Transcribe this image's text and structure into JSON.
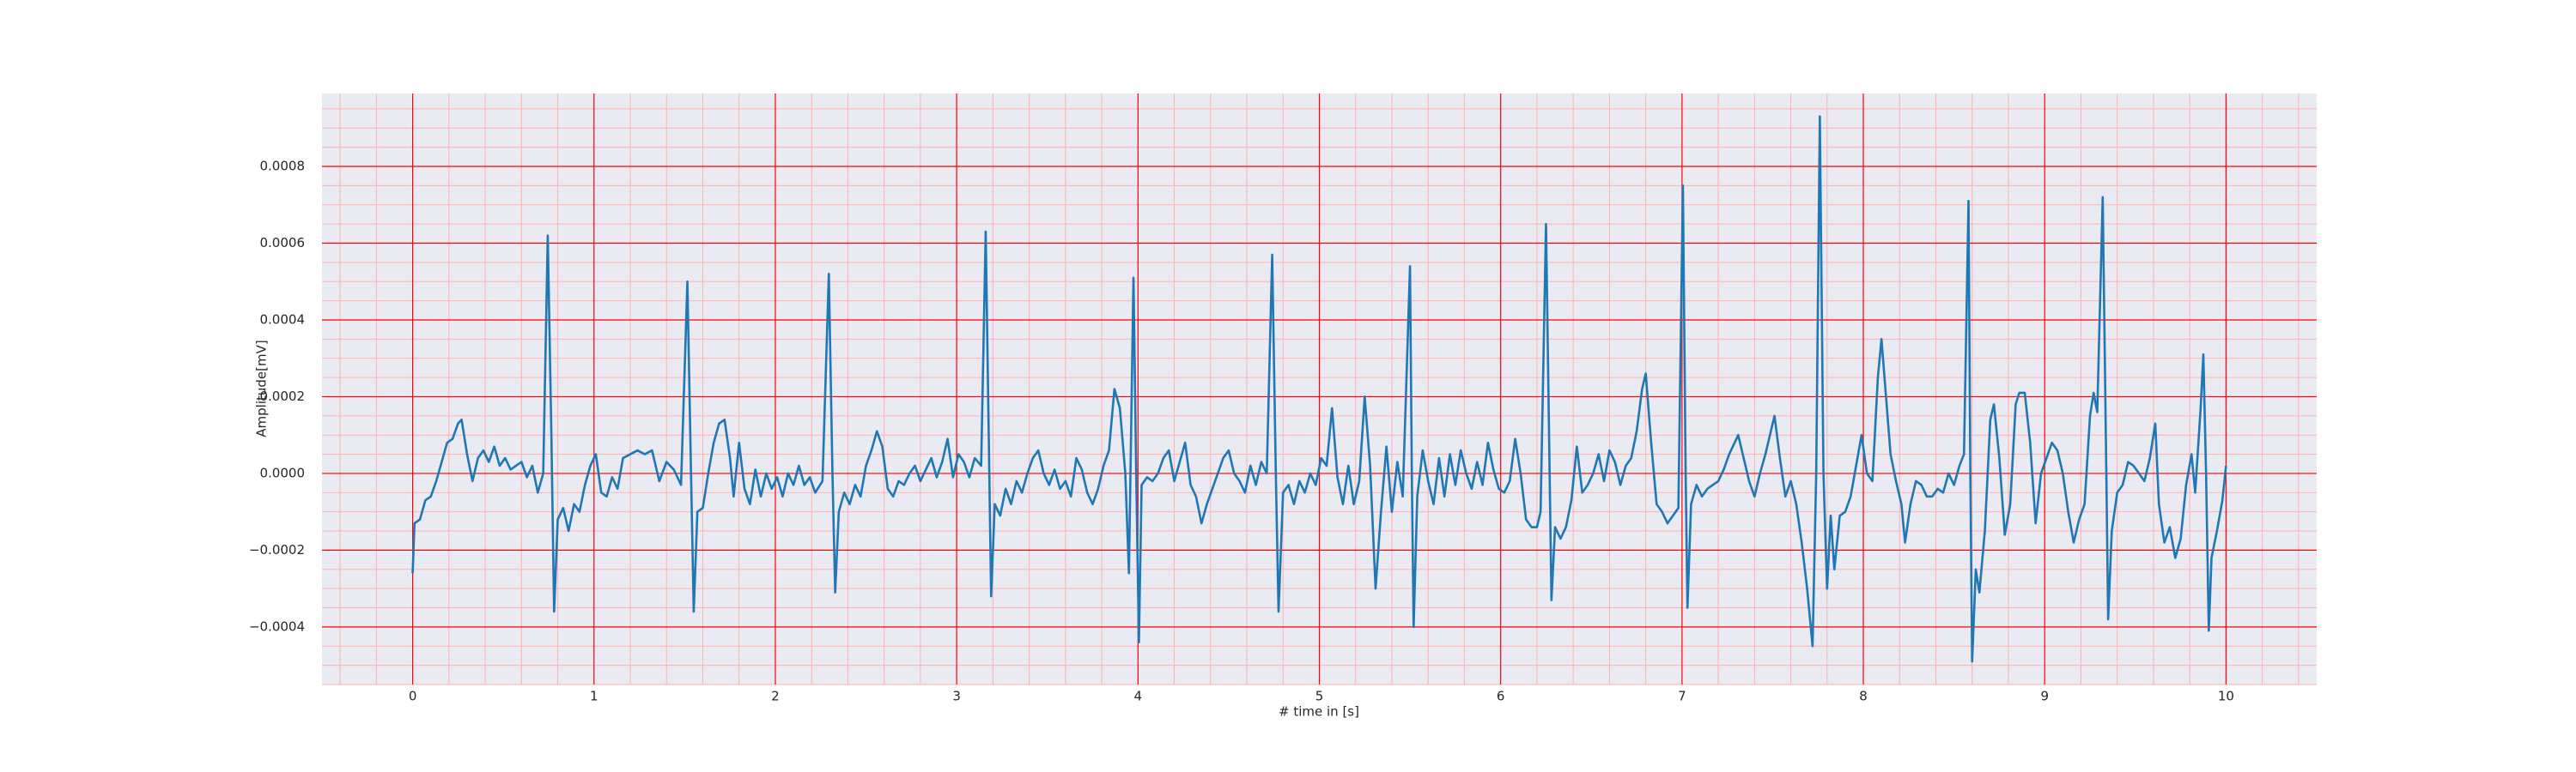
{
  "chart_data": {
    "type": "line",
    "xlabel": "# time in [s]",
    "ylabel": "Amplitude[mV]",
    "xlim": [
      -0.5,
      10.5
    ],
    "ylim": [
      -0.00055,
      0.00099
    ],
    "xticks": [
      0,
      1,
      2,
      3,
      4,
      5,
      6,
      7,
      8,
      9,
      10
    ],
    "yticks": [
      {
        "value": -0.0004,
        "label": "−0.0004"
      },
      {
        "value": -0.0002,
        "label": "−0.0002"
      },
      {
        "value": 0,
        "label": "0.0000"
      },
      {
        "value": 0.0002,
        "label": "0.0002"
      },
      {
        "value": 0.0004,
        "label": "0.0004"
      },
      {
        "value": 0.0006,
        "label": "0.0006"
      },
      {
        "value": 0.0008,
        "label": "0.0008"
      }
    ],
    "grid": true,
    "grid_color": "#ff0000",
    "minor_grid_color": "#ffb0b0",
    "x_minor_per_major": 5,
    "y_minor_per_major": 4,
    "background": "#eaeaf2",
    "x": [
      0.0,
      0.01,
      0.04,
      0.07,
      0.1,
      0.13,
      0.16,
      0.19,
      0.22,
      0.25,
      0.27,
      0.3,
      0.33,
      0.36,
      0.39,
      0.42,
      0.45,
      0.48,
      0.51,
      0.54,
      0.57,
      0.6,
      0.63,
      0.66,
      0.69,
      0.72,
      0.745,
      0.765,
      0.78,
      0.8,
      0.83,
      0.86,
      0.89,
      0.92,
      0.95,
      0.98,
      1.01,
      1.04,
      1.07,
      1.1,
      1.13,
      1.16,
      1.2,
      1.24,
      1.28,
      1.32,
      1.36,
      1.4,
      1.44,
      1.48,
      1.515,
      1.535,
      1.55,
      1.57,
      1.6,
      1.63,
      1.66,
      1.69,
      1.72,
      1.75,
      1.77,
      1.8,
      1.83,
      1.86,
      1.89,
      1.92,
      1.95,
      1.98,
      2.01,
      2.04,
      2.07,
      2.1,
      2.13,
      2.16,
      2.19,
      2.22,
      2.26,
      2.295,
      2.315,
      2.33,
      2.35,
      2.38,
      2.41,
      2.44,
      2.47,
      2.5,
      2.53,
      2.56,
      2.59,
      2.62,
      2.65,
      2.68,
      2.71,
      2.74,
      2.77,
      2.8,
      2.83,
      2.86,
      2.89,
      2.92,
      2.95,
      2.98,
      3.01,
      3.04,
      3.07,
      3.1,
      3.135,
      3.16,
      3.18,
      3.19,
      3.21,
      3.24,
      3.27,
      3.3,
      3.33,
      3.36,
      3.39,
      3.42,
      3.45,
      3.48,
      3.51,
      3.54,
      3.57,
      3.6,
      3.63,
      3.66,
      3.69,
      3.72,
      3.75,
      3.78,
      3.81,
      3.84,
      3.87,
      3.9,
      3.93,
      3.95,
      3.975,
      3.99,
      4.005,
      4.02,
      4.05,
      4.08,
      4.11,
      4.14,
      4.17,
      4.2,
      4.23,
      4.26,
      4.29,
      4.32,
      4.35,
      4.38,
      4.41,
      4.44,
      4.47,
      4.5,
      4.53,
      4.56,
      4.59,
      4.62,
      4.65,
      4.68,
      4.71,
      4.74,
      4.76,
      4.775,
      4.8,
      4.83,
      4.86,
      4.89,
      4.92,
      4.95,
      4.98,
      5.01,
      5.04,
      5.07,
      5.1,
      5.13,
      5.16,
      5.19,
      5.22,
      5.25,
      5.28,
      5.31,
      5.34,
      5.37,
      5.4,
      5.43,
      5.46,
      5.5,
      5.51,
      5.52,
      5.54,
      5.57,
      5.6,
      5.63,
      5.66,
      5.69,
      5.72,
      5.75,
      5.78,
      5.81,
      5.84,
      5.87,
      5.9,
      5.93,
      5.96,
      5.99,
      6.02,
      6.05,
      6.08,
      6.11,
      6.14,
      6.17,
      6.2,
      6.22,
      6.25,
      6.27,
      6.28,
      6.3,
      6.33,
      6.36,
      6.39,
      6.42,
      6.45,
      6.48,
      6.51,
      6.54,
      6.57,
      6.6,
      6.63,
      6.66,
      6.69,
      6.72,
      6.75,
      6.78,
      6.8,
      6.83,
      6.86,
      6.89,
      6.92,
      6.95,
      6.98,
      7.005,
      7.02,
      7.03,
      7.05,
      7.08,
      7.11,
      7.14,
      7.17,
      7.2,
      7.23,
      7.26,
      7.29,
      7.31,
      7.34,
      7.37,
      7.4,
      7.43,
      7.46,
      7.49,
      7.51,
      7.54,
      7.57,
      7.6,
      7.63,
      7.66,
      7.69,
      7.72,
      7.74,
      7.76,
      7.78,
      7.8,
      7.82,
      7.84,
      7.87,
      7.9,
      7.93,
      7.96,
      7.99,
      8.02,
      8.05,
      8.08,
      8.1,
      8.12,
      8.15,
      8.18,
      8.21,
      8.23,
      8.26,
      8.29,
      8.32,
      8.35,
      8.38,
      8.41,
      8.44,
      8.47,
      8.5,
      8.53,
      8.555,
      8.58,
      8.59,
      8.6,
      8.62,
      8.64,
      8.67,
      8.7,
      8.72,
      8.75,
      8.78,
      8.81,
      8.84,
      8.86,
      8.89,
      8.92,
      8.95,
      8.98,
      9.01,
      9.04,
      9.07,
      9.1,
      9.13,
      9.16,
      9.19,
      9.22,
      9.25,
      9.27,
      9.29,
      9.32,
      9.34,
      9.35,
      9.37,
      9.4,
      9.43,
      9.46,
      9.49,
      9.52,
      9.55,
      9.58,
      9.61,
      9.63,
      9.66,
      9.69,
      9.72,
      9.75,
      9.78,
      9.81,
      9.83,
      9.86,
      9.875,
      9.89,
      9.905,
      9.92,
      9.95,
      9.98,
      10.0
    ],
    "series": [
      {
        "color": "#1f77b4",
        "values": [
          -0.00026,
          -0.00013,
          -0.00012,
          -7e-05,
          -6e-05,
          -2e-05,
          3e-05,
          8e-05,
          9e-05,
          0.00013,
          0.00014,
          5e-05,
          -2e-05,
          4e-05,
          6e-05,
          3e-05,
          7e-05,
          2e-05,
          4e-05,
          1e-05,
          2e-05,
          3e-05,
          -1e-05,
          2e-05,
          -5e-05,
          0.0,
          0.00062,
          0.0001,
          -0.00036,
          -0.00012,
          -9e-05,
          -0.00015,
          -8e-05,
          -0.0001,
          -3e-05,
          2e-05,
          5e-05,
          -5e-05,
          -6e-05,
          -1e-05,
          -4e-05,
          4e-05,
          5e-05,
          6e-05,
          5e-05,
          6e-05,
          -2e-05,
          3e-05,
          1e-05,
          -3e-05,
          0.0005,
          0.0,
          -0.00036,
          -0.0001,
          -9e-05,
          0.0,
          8e-05,
          0.00013,
          0.00014,
          4e-05,
          -6e-05,
          8e-05,
          -4e-05,
          -8e-05,
          1e-05,
          -6e-05,
          0.0,
          -4e-05,
          -1e-05,
          -6e-05,
          0.0,
          -3e-05,
          2e-05,
          -3e-05,
          -1e-05,
          -5e-05,
          -2e-05,
          0.00052,
          0.0,
          -0.00031,
          -0.0001,
          -5e-05,
          -8e-05,
          -3e-05,
          -6e-05,
          2e-05,
          6e-05,
          0.00011,
          7e-05,
          -4e-05,
          -6e-05,
          -2e-05,
          -3e-05,
          0.0,
          2e-05,
          -2e-05,
          1e-05,
          4e-05,
          -1e-05,
          3e-05,
          9e-05,
          -1e-05,
          5e-05,
          3e-05,
          -1e-05,
          4e-05,
          2e-05,
          0.00063,
          0.0,
          -0.00032,
          -8e-05,
          -0.00011,
          -4e-05,
          -8e-05,
          -2e-05,
          -5e-05,
          0.0,
          4e-05,
          6e-05,
          0.0,
          -3e-05,
          1e-05,
          -4e-05,
          -2e-05,
          -6e-05,
          4e-05,
          1e-05,
          -5e-05,
          -8e-05,
          -4e-05,
          2e-05,
          6e-05,
          0.00022,
          0.00017,
          0.0,
          -0.00026,
          0.00051,
          0.0,
          -0.00044,
          -3e-05,
          -1e-05,
          -2e-05,
          0.0,
          4e-05,
          6e-05,
          -2e-05,
          3e-05,
          8e-05,
          -3e-05,
          -6e-05,
          -0.00013,
          -8e-05,
          -4e-05,
          0.0,
          4e-05,
          6e-05,
          0.0,
          -2e-05,
          -5e-05,
          2e-05,
          -3e-05,
          3e-05,
          0.0,
          0.00057,
          0.0,
          -0.00036,
          -5e-05,
          -3e-05,
          -8e-05,
          -2e-05,
          -5e-05,
          0.0,
          -3e-05,
          4e-05,
          2e-05,
          0.00017,
          -1e-05,
          -8e-05,
          2e-05,
          -8e-05,
          -2e-05,
          0.0002,
          2e-05,
          -0.0003,
          -0.0001,
          7e-05,
          -0.0001,
          3e-05,
          -6e-05,
          0.00054,
          0.0,
          -0.0004,
          -6e-05,
          6e-05,
          -2e-05,
          -8e-05,
          4e-05,
          -6e-05,
          5e-05,
          -3e-05,
          6e-05,
          0.0,
          -4e-05,
          3e-05,
          -3e-05,
          8e-05,
          1e-05,
          -4e-05,
          -5e-05,
          -2e-05,
          9e-05,
          0.0,
          -0.00012,
          -0.00014,
          -0.00014,
          -0.0001,
          0.00065,
          0.0,
          -0.00033,
          -0.00014,
          -0.00017,
          -0.00014,
          -7e-05,
          7e-05,
          -5e-05,
          -3e-05,
          0.0,
          5e-05,
          -2e-05,
          6e-05,
          3e-05,
          -3e-05,
          2e-05,
          4e-05,
          0.00011,
          0.00022,
          0.00026,
          8e-05,
          -8e-05,
          -0.0001,
          -0.00013,
          -0.00011,
          -9e-05,
          0.00075,
          0.0,
          -0.00035,
          -8e-05,
          -3e-05,
          -6e-05,
          -4e-05,
          -3e-05,
          -2e-05,
          1e-05,
          5e-05,
          8e-05,
          0.0001,
          4e-05,
          -2e-05,
          -6e-05,
          0.0,
          5e-05,
          0.00011,
          0.00015,
          4e-05,
          -6e-05,
          -2e-05,
          -8e-05,
          -0.00018,
          -0.0003,
          -0.00045,
          0.0,
          0.00093,
          0.0,
          -0.0003,
          -0.00011,
          -0.00025,
          -0.00011,
          -0.0001,
          -6e-05,
          2e-05,
          0.0001,
          0.0,
          -2e-05,
          0.00025,
          0.00035,
          0.00023,
          5e-05,
          -2e-05,
          -8e-05,
          -0.00018,
          -8e-05,
          -2e-05,
          -3e-05,
          -6e-05,
          -6e-05,
          -4e-05,
          -5e-05,
          0.0,
          -3e-05,
          2e-05,
          5e-05,
          0.00071,
          0.0,
          -0.00049,
          -0.00025,
          -0.00031,
          -0.00015,
          0.00014,
          0.00018,
          4e-05,
          -0.00016,
          -8e-05,
          0.00018,
          0.00021,
          0.00021,
          8e-05,
          -0.00013,
          0.0,
          4e-05,
          8e-05,
          6e-05,
          0.0,
          -0.0001,
          -0.00018,
          -0.00012,
          -8e-05,
          0.00015,
          0.00021,
          0.00016,
          0.00072,
          0.0,
          -0.00038,
          -0.00015,
          -5e-05,
          -3e-05,
          3e-05,
          2e-05,
          0.0,
          -2e-05,
          4e-05,
          0.00013,
          -8e-05,
          -0.00018,
          -0.00014,
          -0.00022,
          -0.00017,
          -3e-05,
          5e-05,
          -5e-05,
          0.00017,
          0.00031,
          0.0,
          -0.00041,
          -0.00022,
          -0.00015,
          -7e-05,
          2e-05
        ]
      }
    ]
  }
}
